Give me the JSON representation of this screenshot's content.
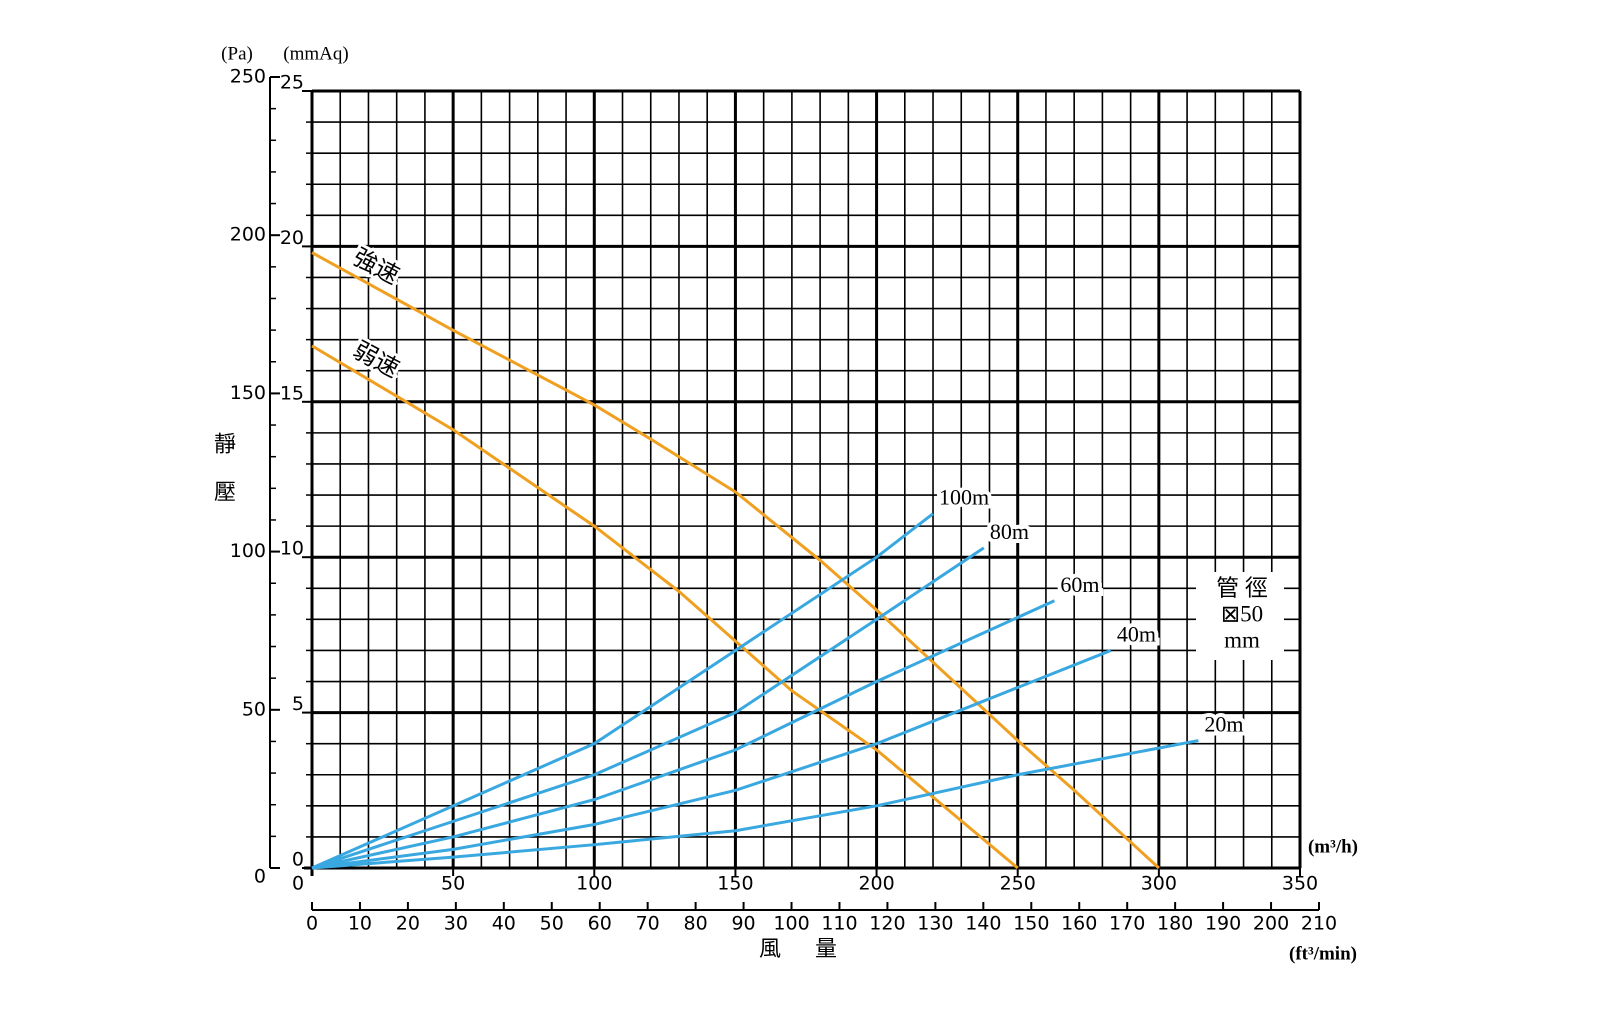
{
  "chart_data": {
    "type": "line",
    "y_label": "靜壓",
    "x_label": "風量",
    "y_unit": "(mmAq)",
    "y2_unit": "(Pa)",
    "x_unit": "(m³/h)",
    "x2_unit": "(ft³/min)",
    "xlim": [
      0,
      350
    ],
    "xticks": [
      0,
      50,
      100,
      150,
      200,
      250,
      300,
      350
    ],
    "ylim": [
      0,
      25
    ],
    "yticks": [
      0,
      5,
      10,
      15,
      20,
      25
    ],
    "y2lim": [
      0,
      250
    ],
    "y2ticks": [
      0,
      50,
      100,
      150,
      200,
      250
    ],
    "x2lim": [
      0,
      210
    ],
    "x2ticks": [
      0,
      10,
      20,
      30,
      40,
      50,
      60,
      70,
      80,
      90,
      100,
      110,
      120,
      130,
      140,
      150,
      160,
      170,
      180,
      190,
      200,
      210
    ],
    "grid": true,
    "minor_grid": {
      "x": 10,
      "y": 1,
      "y2": 10
    },
    "series": [
      {
        "name": "強速",
        "color": "#f0a020",
        "x": [
          0,
          50,
          100,
          120,
          150,
          180,
          200,
          250,
          270,
          300
        ],
        "values": [
          19.8,
          17.3,
          14.9,
          13.8,
          12.1,
          9.9,
          8.3,
          4.1,
          2.5,
          0
        ]
      },
      {
        "name": "弱速",
        "color": "#f0a020",
        "x": [
          0,
          50,
          100,
          130,
          150,
          170,
          200,
          250
        ],
        "values": [
          16.8,
          14.1,
          11.0,
          8.9,
          7.3,
          5.7,
          3.8,
          0
        ]
      },
      {
        "name": "100m",
        "color": "#3aa8e0",
        "x": [
          0,
          50,
          100,
          150,
          200,
          220
        ],
        "values": [
          0,
          2,
          4,
          7,
          10,
          11.4
        ]
      },
      {
        "name": "80m",
        "color": "#3aa8e0",
        "x": [
          0,
          50,
          100,
          150,
          200,
          238
        ],
        "values": [
          0,
          1.5,
          3,
          5,
          8,
          10.3
        ]
      },
      {
        "name": "60m",
        "color": "#3aa8e0",
        "x": [
          0,
          50,
          100,
          150,
          200,
          263
        ],
        "values": [
          0,
          1,
          2.2,
          3.8,
          6,
          8.6
        ]
      },
      {
        "name": "40m",
        "color": "#3aa8e0",
        "x": [
          0,
          50,
          100,
          150,
          200,
          283
        ],
        "values": [
          0,
          0.6,
          1.4,
          2.5,
          4,
          7
        ]
      },
      {
        "name": "20m",
        "color": "#3aa8e0",
        "x": [
          0,
          50,
          100,
          150,
          200,
          250,
          314
        ],
        "values": [
          0,
          0.35,
          0.75,
          1.2,
          2,
          3,
          4.1
        ]
      }
    ],
    "annotation": [
      "管 徑",
      "⊠50",
      "mm"
    ]
  }
}
